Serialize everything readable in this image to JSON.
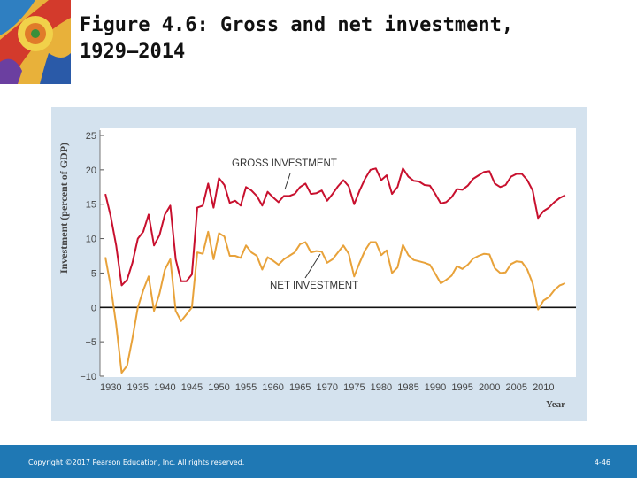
{
  "slide": {
    "title_line1": "Figure 4.6: Gross and net investment,",
    "title_line2": "1929–2014",
    "copyright": "Copyright ©2017 Pearson Education, Inc. All rights reserved.",
    "page_number": "4-46"
  },
  "colors": {
    "gross": "#c8102e",
    "net": "#e8a23a",
    "panel": "#d4e2ee",
    "footer": "#1f78b4"
  },
  "chart_data": {
    "type": "line",
    "title": "",
    "xlabel": "Year",
    "ylabel": "Investment (percent of GDP)",
    "xlim": [
      1928,
      2016
    ],
    "ylim": [
      -10,
      25
    ],
    "yticks": [
      "25",
      "20",
      "15",
      "10",
      "5",
      "0",
      "−5",
      "−10"
    ],
    "xticks": [
      "1930",
      "1935",
      "1940",
      "1945",
      "1950",
      "1955",
      "1960",
      "1965",
      "1970",
      "1975",
      "1980",
      "1985",
      "1990",
      "1995",
      "2000",
      "2005",
      "2010"
    ],
    "grid": false,
    "annotations": [
      "GROSS INVESTMENT",
      "NET INVESTMENT"
    ],
    "x": [
      1929,
      1930,
      1931,
      1932,
      1933,
      1934,
      1935,
      1936,
      1937,
      1938,
      1939,
      1940,
      1941,
      1942,
      1943,
      1944,
      1945,
      1946,
      1947,
      1948,
      1949,
      1950,
      1951,
      1952,
      1953,
      1954,
      1955,
      1956,
      1957,
      1958,
      1959,
      1960,
      1961,
      1962,
      1963,
      1964,
      1965,
      1966,
      1967,
      1968,
      1969,
      1970,
      1971,
      1972,
      1973,
      1974,
      1975,
      1976,
      1977,
      1978,
      1979,
      1980,
      1981,
      1982,
      1983,
      1984,
      1985,
      1986,
      1987,
      1988,
      1989,
      1990,
      1991,
      1992,
      1993,
      1994,
      1995,
      1996,
      1997,
      1998,
      1999,
      2000,
      2001,
      2002,
      2003,
      2004,
      2005,
      2006,
      2007,
      2008,
      2009,
      2010,
      2011,
      2012,
      2013,
      2014
    ],
    "series": [
      {
        "name": "GROSS INVESTMENT",
        "values": [
          16.5,
          13.2,
          9.0,
          3.2,
          4.0,
          6.5,
          10.0,
          11.0,
          13.5,
          9.0,
          10.5,
          13.5,
          14.8,
          7.0,
          3.8,
          3.8,
          4.8,
          14.5,
          14.8,
          18.0,
          14.5,
          18.8,
          17.8,
          15.2,
          15.5,
          14.8,
          17.5,
          17.0,
          16.2,
          14.8,
          16.8,
          16.0,
          15.3,
          16.2,
          16.2,
          16.5,
          17.5,
          18.0,
          16.5,
          16.6,
          17.0,
          15.5,
          16.5,
          17.6,
          18.5,
          17.6,
          15.0,
          17.0,
          18.7,
          20.0,
          20.2,
          18.5,
          19.2,
          16.5,
          17.5,
          20.2,
          19.0,
          18.4,
          18.3,
          17.8,
          17.7,
          16.5,
          15.1,
          15.3,
          16.0,
          17.2,
          17.1,
          17.7,
          18.7,
          19.2,
          19.7,
          19.8,
          18.0,
          17.5,
          17.8,
          19.0,
          19.4,
          19.4,
          18.5,
          17.0,
          13.0,
          14.0,
          14.5,
          15.3,
          15.9,
          16.3
        ]
      },
      {
        "name": "NET INVESTMENT",
        "values": [
          7.3,
          3.0,
          -2.5,
          -9.5,
          -8.5,
          -4.5,
          0.0,
          2.5,
          4.5,
          -0.5,
          2.0,
          5.5,
          7.0,
          -0.5,
          -2.0,
          -1.0,
          0.0,
          8.0,
          7.8,
          11.0,
          7.0,
          10.8,
          10.3,
          7.5,
          7.5,
          7.2,
          9.0,
          8.0,
          7.5,
          5.5,
          7.3,
          6.8,
          6.2,
          7.0,
          7.5,
          8.0,
          9.2,
          9.5,
          8.0,
          8.2,
          8.1,
          6.5,
          7.0,
          8.0,
          9.0,
          7.8,
          4.5,
          6.5,
          8.3,
          9.5,
          9.5,
          7.6,
          8.3,
          5.0,
          5.8,
          9.1,
          7.6,
          6.9,
          6.7,
          6.5,
          6.2,
          4.9,
          3.5,
          4.0,
          4.6,
          6.0,
          5.6,
          6.2,
          7.1,
          7.5,
          7.8,
          7.7,
          5.7,
          5.0,
          5.1,
          6.3,
          6.7,
          6.6,
          5.5,
          3.5,
          -0.3,
          1.0,
          1.5,
          2.5,
          3.2,
          3.5
        ]
      }
    ]
  }
}
